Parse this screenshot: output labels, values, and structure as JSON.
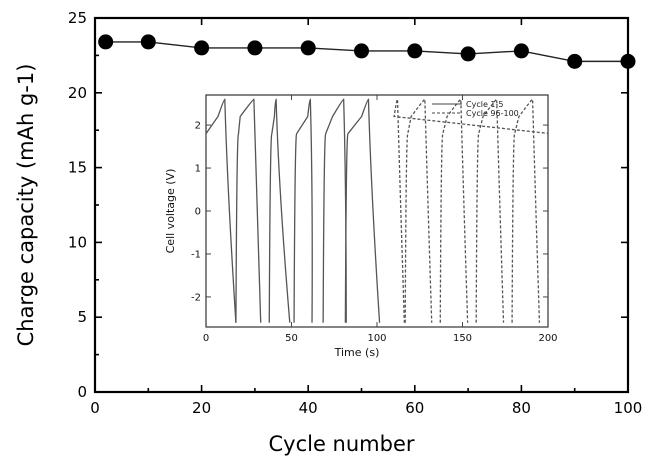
{
  "chart_data": [
    {
      "type": "line",
      "role": "main",
      "xlabel": "Cycle number",
      "ylabel": "Charge capacity (mAh g-1)",
      "xlim": [
        0,
        100
      ],
      "ylim": [
        0,
        25
      ],
      "xticks": [
        "0",
        "20",
        "40",
        "60",
        "80",
        "100"
      ],
      "yticks": [
        "0",
        "5",
        "10",
        "15",
        "20",
        "25"
      ],
      "x": [
        2,
        10,
        20,
        30,
        40,
        50,
        60,
        70,
        80,
        90,
        100
      ],
      "values": [
        23.4,
        23.4,
        23.0,
        23.0,
        23.0,
        22.8,
        22.8,
        22.6,
        22.8,
        22.1,
        22.1
      ]
    },
    {
      "type": "line",
      "role": "inset",
      "xlabel": "Time (s)",
      "ylabel": "Cell voltage (V)",
      "xlim": [
        0,
        200
      ],
      "ylim": [
        -2.7,
        2.7
      ],
      "xticks": [
        "0",
        "50",
        "100",
        "150",
        "200"
      ],
      "yticks": [
        "-2",
        "-1",
        "0",
        "1",
        "2"
      ],
      "series": [
        {
          "name": "Cycle 1-5",
          "style": "solid",
          "x": [
            0,
            7,
            11,
            17.5,
            19,
            20,
            28,
            32,
            38.5,
            40,
            41,
            49,
            53,
            59.5,
            61,
            62,
            70,
            74,
            80.5,
            82,
            83,
            91,
            95,
            101.5
          ],
          "y": [
            1.8,
            2.2,
            2.6,
            -2.6,
            1.8,
            2.2,
            2.6,
            -2.6,
            1.8,
            2.2,
            2.6,
            -2.6,
            1.8,
            2.2,
            2.6,
            -2.6,
            1.8,
            2.2,
            2.6,
            -2.6,
            1.8,
            2.2,
            2.6,
            -2.6
          ]
        },
        {
          "name": "Cycle 96-100",
          "style": "dashed",
          "x": [
            118,
            120,
            128,
            132,
            138.5,
            141,
            149,
            153,
            159.5,
            162,
            170,
            174,
            180.5,
            183,
            191,
            195,
            201.5,
            110,
            112,
            116
          ],
          "y": [
            1.8,
            2.2,
            2.6,
            -2.6,
            1.8,
            2.2,
            2.6,
            -2.6,
            1.8,
            2.2,
            2.6,
            -2.6,
            1.8,
            2.2,
            2.6,
            -2.6,
            1.8,
            2.2,
            2.6,
            -2.6
          ]
        }
      ]
    }
  ]
}
